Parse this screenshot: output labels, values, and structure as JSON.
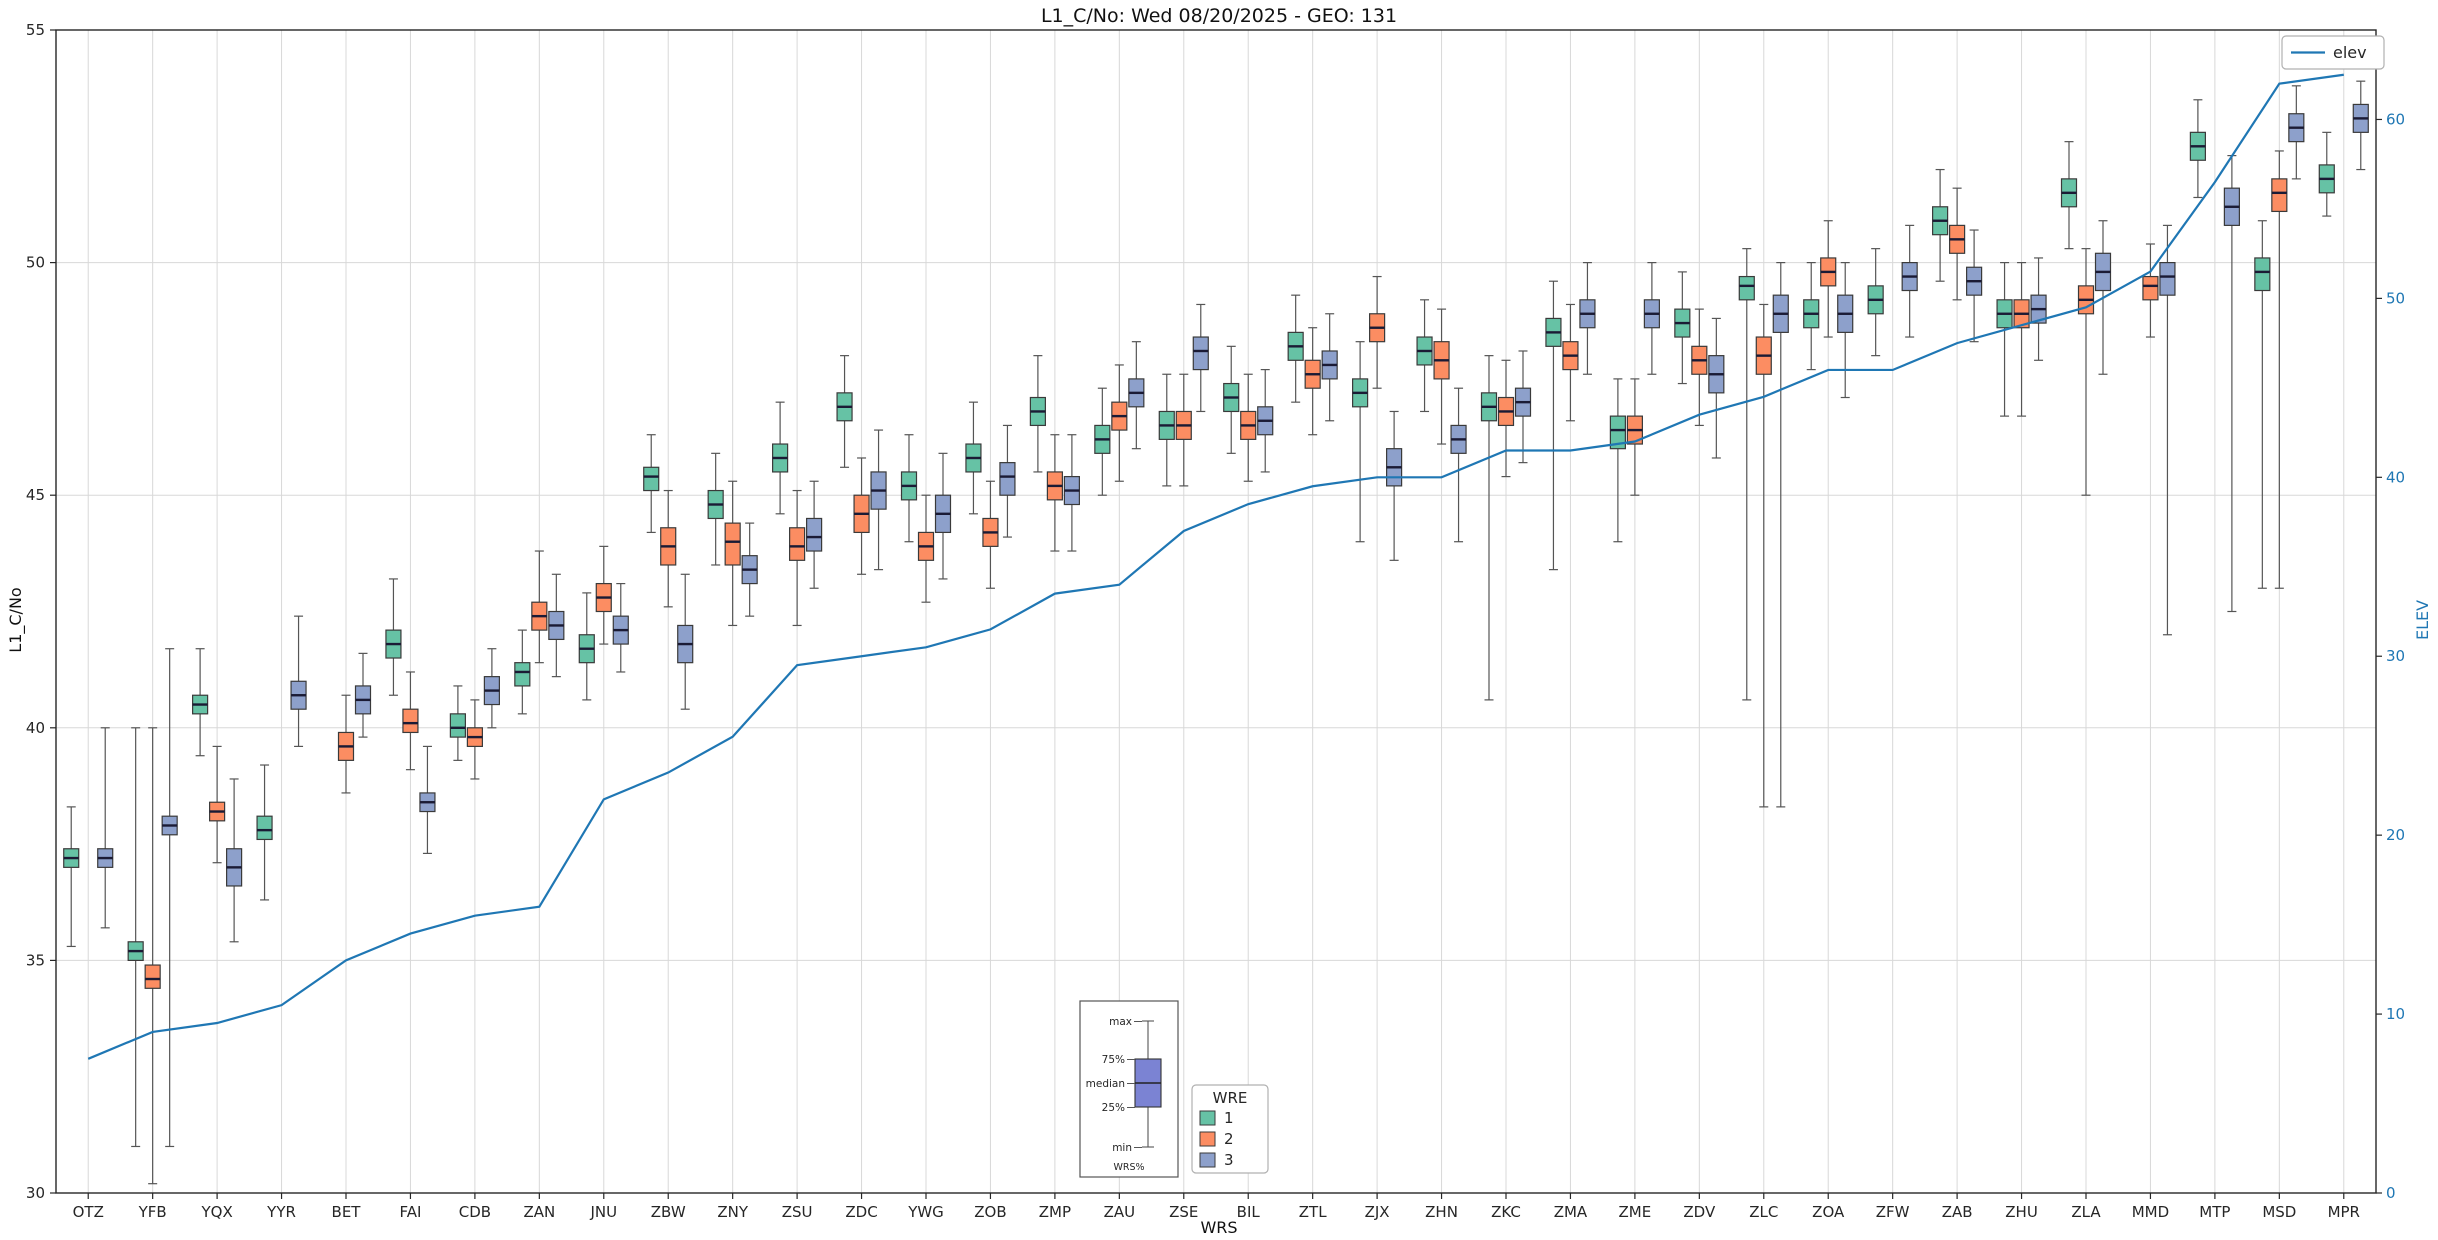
{
  "chart_data": {
    "type": "boxplot+line",
    "title": "L1_C/No: Wed 08/20/2025 - GEO: 131",
    "xlabel": "WRS",
    "ylabel_left": "L1_C/No",
    "ylabel_right": "ELEV",
    "ylim_left": [
      30,
      55
    ],
    "ylim_right": [
      0,
      65
    ],
    "yticks_left": [
      30,
      35,
      40,
      45,
      50,
      55
    ],
    "yticks_right": [
      0,
      10,
      20,
      30,
      40,
      50,
      60
    ],
    "grid": true,
    "categories": [
      "OTZ",
      "YFB",
      "YQX",
      "YYR",
      "BET",
      "FAI",
      "CDB",
      "ZAN",
      "JNU",
      "ZBW",
      "ZNY",
      "ZSU",
      "ZDC",
      "YWG",
      "ZOB",
      "ZMP",
      "ZAU",
      "ZSE",
      "BIL",
      "ZTL",
      "ZJX",
      "ZHN",
      "ZKC",
      "ZMA",
      "ZME",
      "ZDV",
      "ZLC",
      "ZOA",
      "ZFW",
      "ZAB",
      "ZHU",
      "ZLA",
      "MMD",
      "MTP",
      "MSD",
      "MPR"
    ],
    "box_format": [
      "min",
      "q1",
      "median",
      "q3",
      "max"
    ],
    "series": [
      {
        "name": "1",
        "color": "#66c2a5",
        "boxes": [
          [
            35.3,
            37.0,
            37.2,
            37.4,
            38.3
          ],
          [
            31.0,
            35.0,
            35.2,
            35.4,
            40.0
          ],
          [
            39.4,
            40.3,
            40.5,
            40.7,
            41.7
          ],
          [
            36.3,
            37.6,
            37.8,
            38.1,
            39.2
          ],
          null,
          [
            40.7,
            41.5,
            41.8,
            42.1,
            43.2
          ],
          [
            39.3,
            39.8,
            40.0,
            40.3,
            40.9
          ],
          [
            40.3,
            40.9,
            41.2,
            41.4,
            42.1
          ],
          [
            40.6,
            41.4,
            41.7,
            42.0,
            42.9
          ],
          [
            44.2,
            45.1,
            45.4,
            45.6,
            46.3
          ],
          [
            43.5,
            44.5,
            44.8,
            45.1,
            45.9
          ],
          [
            44.6,
            45.5,
            45.8,
            46.1,
            47.0
          ],
          [
            45.6,
            46.6,
            46.9,
            47.2,
            48.0
          ],
          [
            44.0,
            44.9,
            45.2,
            45.5,
            46.3
          ],
          [
            44.6,
            45.5,
            45.8,
            46.1,
            47.0
          ],
          [
            45.5,
            46.5,
            46.8,
            47.1,
            48.0
          ],
          [
            45.0,
            45.9,
            46.2,
            46.5,
            47.3
          ],
          [
            45.2,
            46.2,
            46.5,
            46.8,
            47.6
          ],
          [
            45.9,
            46.8,
            47.1,
            47.4,
            48.2
          ],
          [
            47.0,
            47.9,
            48.2,
            48.5,
            49.3
          ],
          [
            44.0,
            46.9,
            47.2,
            47.5,
            48.3
          ],
          [
            46.8,
            47.8,
            48.1,
            48.4,
            49.2
          ],
          [
            40.6,
            46.6,
            46.9,
            47.2,
            48.0
          ],
          [
            43.4,
            48.2,
            48.5,
            48.8,
            49.6
          ],
          [
            44.0,
            46.0,
            46.4,
            46.7,
            47.5
          ],
          [
            47.4,
            48.4,
            48.7,
            49.0,
            49.8
          ],
          [
            40.6,
            49.2,
            49.5,
            49.7,
            50.3
          ],
          [
            47.7,
            48.6,
            48.9,
            49.2,
            50.0
          ],
          [
            48.0,
            48.9,
            49.2,
            49.5,
            50.3
          ],
          [
            49.6,
            50.6,
            50.9,
            51.2,
            52.0
          ],
          [
            46.7,
            48.6,
            48.9,
            49.2,
            50.0
          ],
          [
            50.3,
            51.2,
            51.5,
            51.8,
            52.6
          ],
          null,
          [
            51.4,
            52.2,
            52.5,
            52.8,
            53.5
          ],
          [
            43.0,
            49.4,
            49.8,
            50.1,
            50.9
          ],
          [
            51.0,
            51.5,
            51.8,
            52.1,
            52.8
          ]
        ]
      },
      {
        "name": "2",
        "color": "#fc8d62",
        "boxes": [
          null,
          [
            30.2,
            34.4,
            34.6,
            34.9,
            40.0
          ],
          [
            37.1,
            38.0,
            38.2,
            38.4,
            39.6
          ],
          null,
          [
            38.6,
            39.3,
            39.6,
            39.9,
            40.7
          ],
          [
            39.1,
            39.9,
            40.1,
            40.4,
            41.2
          ],
          [
            38.9,
            39.6,
            39.8,
            40.0,
            40.6
          ],
          [
            41.4,
            42.1,
            42.4,
            42.7,
            43.8
          ],
          [
            41.8,
            42.5,
            42.8,
            43.1,
            43.9
          ],
          [
            42.6,
            43.5,
            43.9,
            44.3,
            45.1
          ],
          [
            42.2,
            43.5,
            44.0,
            44.4,
            45.3
          ],
          [
            42.2,
            43.6,
            43.9,
            44.3,
            45.1
          ],
          [
            43.3,
            44.2,
            44.6,
            45.0,
            45.8
          ],
          [
            42.7,
            43.6,
            43.9,
            44.2,
            45.0
          ],
          [
            43.0,
            43.9,
            44.2,
            44.5,
            45.3
          ],
          [
            43.8,
            44.9,
            45.2,
            45.5,
            46.3
          ],
          [
            45.3,
            46.4,
            46.7,
            47.0,
            47.8
          ],
          [
            45.2,
            46.2,
            46.5,
            46.8,
            47.6
          ],
          [
            45.3,
            46.2,
            46.5,
            46.8,
            47.6
          ],
          [
            46.3,
            47.3,
            47.6,
            47.9,
            48.6
          ],
          [
            47.3,
            48.3,
            48.6,
            48.9,
            49.7
          ],
          [
            46.1,
            47.5,
            47.9,
            48.3,
            49.0
          ],
          [
            45.4,
            46.5,
            46.8,
            47.1,
            47.9
          ],
          [
            46.6,
            47.7,
            48.0,
            48.3,
            49.1
          ],
          [
            45.0,
            46.1,
            46.4,
            46.7,
            47.5
          ],
          [
            46.5,
            47.6,
            47.9,
            48.2,
            49.0
          ],
          [
            38.3,
            47.6,
            48.0,
            48.4,
            49.1
          ],
          [
            48.4,
            49.5,
            49.8,
            50.1,
            50.9
          ],
          null,
          [
            49.2,
            50.2,
            50.5,
            50.8,
            51.6
          ],
          [
            46.7,
            48.6,
            48.9,
            49.2,
            50.0
          ],
          [
            45.0,
            48.9,
            49.2,
            49.5,
            50.3
          ],
          [
            48.4,
            49.2,
            49.5,
            49.7,
            50.4
          ],
          null,
          [
            43.0,
            51.1,
            51.5,
            51.8,
            52.4
          ],
          null
        ]
      },
      {
        "name": "3",
        "color": "#8da0cb",
        "boxes": [
          [
            35.7,
            37.0,
            37.2,
            37.4,
            40.0
          ],
          [
            31.0,
            37.7,
            37.9,
            38.1,
            41.7
          ],
          [
            35.4,
            36.6,
            37.0,
            37.4,
            38.9
          ],
          [
            39.6,
            40.4,
            40.7,
            41.0,
            42.4
          ],
          [
            39.8,
            40.3,
            40.6,
            40.9,
            41.6
          ],
          [
            37.3,
            38.2,
            38.4,
            38.6,
            39.6
          ],
          [
            40.0,
            40.5,
            40.8,
            41.1,
            41.7
          ],
          [
            41.1,
            41.9,
            42.2,
            42.5,
            43.3
          ],
          [
            41.2,
            41.8,
            42.1,
            42.4,
            43.1
          ],
          [
            40.4,
            41.4,
            41.8,
            42.2,
            43.3
          ],
          [
            42.4,
            43.1,
            43.4,
            43.7,
            44.4
          ],
          [
            43.0,
            43.8,
            44.1,
            44.5,
            45.3
          ],
          [
            43.4,
            44.7,
            45.1,
            45.5,
            46.4
          ],
          [
            43.2,
            44.2,
            44.6,
            45.0,
            45.9
          ],
          [
            44.1,
            45.0,
            45.4,
            45.7,
            46.5
          ],
          [
            43.8,
            44.8,
            45.1,
            45.4,
            46.3
          ],
          [
            46.0,
            46.9,
            47.2,
            47.5,
            48.3
          ],
          [
            46.8,
            47.7,
            48.1,
            48.4,
            49.1
          ],
          [
            45.5,
            46.3,
            46.6,
            46.9,
            47.7
          ],
          [
            46.6,
            47.5,
            47.8,
            48.1,
            48.9
          ],
          [
            43.6,
            45.2,
            45.6,
            46.0,
            46.8
          ],
          [
            44.0,
            45.9,
            46.2,
            46.5,
            47.3
          ],
          [
            45.7,
            46.7,
            47.0,
            47.3,
            48.1
          ],
          [
            47.6,
            48.6,
            48.9,
            49.2,
            50.0
          ],
          [
            47.6,
            48.6,
            48.9,
            49.2,
            50.0
          ],
          [
            45.8,
            47.2,
            47.6,
            48.0,
            48.8
          ],
          [
            38.3,
            48.5,
            48.9,
            49.3,
            50.0
          ],
          [
            47.1,
            48.5,
            48.9,
            49.3,
            50.0
          ],
          [
            48.4,
            49.4,
            49.7,
            50.0,
            50.8
          ],
          [
            48.3,
            49.3,
            49.6,
            49.9,
            50.7
          ],
          [
            47.9,
            48.7,
            49.0,
            49.3,
            50.1
          ],
          [
            47.6,
            49.4,
            49.8,
            50.2,
            50.9
          ],
          [
            42.0,
            49.3,
            49.7,
            50.0,
            50.8
          ],
          [
            42.5,
            50.8,
            51.2,
            51.6,
            52.3
          ],
          [
            51.8,
            52.6,
            52.9,
            53.2,
            53.8
          ],
          [
            52.0,
            52.8,
            53.1,
            53.4,
            53.9
          ]
        ]
      }
    ],
    "line_series": {
      "name": "elev",
      "color": "#1f77b4",
      "axis": "right",
      "values": [
        7.5,
        9.0,
        9.5,
        10.5,
        13.0,
        14.5,
        15.5,
        16.0,
        22.0,
        23.5,
        25.5,
        29.5,
        30.0,
        30.5,
        31.5,
        33.5,
        34.0,
        37.0,
        38.5,
        39.5,
        40.0,
        40.0,
        41.5,
        41.5,
        42.0,
        43.5,
        44.5,
        46.0,
        46.0,
        47.5,
        48.5,
        49.5,
        51.5,
        56.5,
        62.0,
        62.5
      ]
    },
    "legend_line": {
      "label": "elev",
      "position": "top-right"
    },
    "legend_box": {
      "title": "WRE",
      "items": [
        "1",
        "2",
        "3"
      ],
      "position": "bottom-center"
    },
    "inset_legend": {
      "labels": [
        "max",
        "75%",
        "median",
        "25%",
        "min"
      ],
      "caption": "WRS%",
      "box_color": "#7b83d3"
    },
    "colors": {
      "median_line": "#1b1b35",
      "grid": "#d8d8d8",
      "frame": "#262626",
      "tick_text": "#262626",
      "axis_right_text": "#1f77b4"
    }
  }
}
